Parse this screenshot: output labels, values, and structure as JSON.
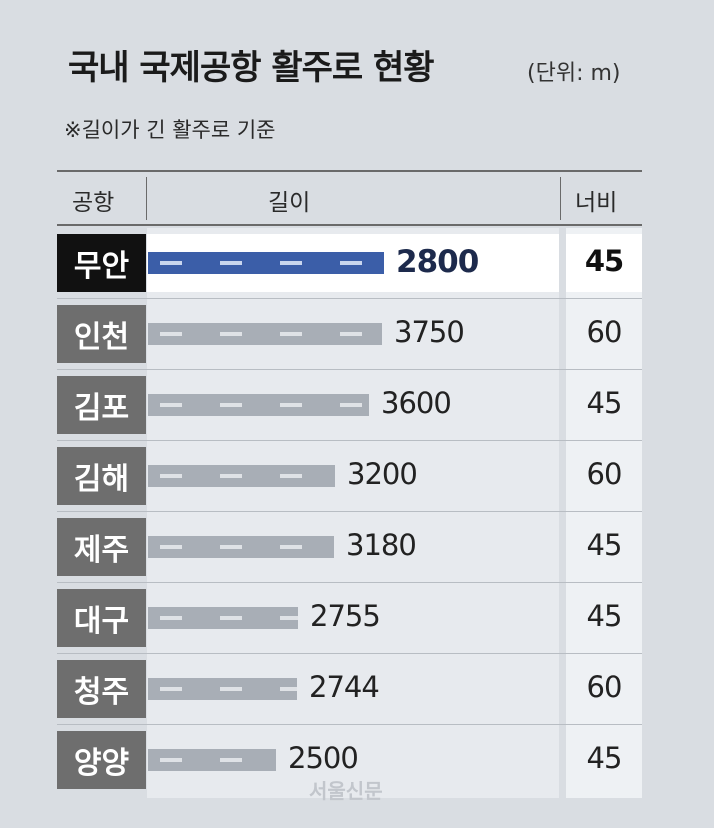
{
  "title": "국내 국제공항 활주로 현황",
  "unit": "(단위: m)",
  "subtitle": "※길이가 긴 활주로 기준",
  "headers": {
    "airport": "공항",
    "length": "길이",
    "width": "너비"
  },
  "watermark": "서울신문",
  "colors": {
    "highlight_bar": "#3b5ea8",
    "bar": "#a8aeb6",
    "highlight_label": "#111111",
    "label": "#6e6e6e"
  },
  "chart_data": {
    "type": "bar",
    "orientation": "horizontal",
    "title": "국내 국제공항 활주로 현황",
    "categories": [
      "무안",
      "인천",
      "김포",
      "김해",
      "제주",
      "대구",
      "청주",
      "양양"
    ],
    "values": [
      2800,
      3750,
      3600,
      3200,
      3180,
      2755,
      2744,
      2500
    ],
    "value_labels": [
      "2800",
      "3750",
      "3600",
      "3200",
      "3180",
      "2755",
      "2744",
      "2500"
    ],
    "widths": [
      "45",
      "60",
      "45",
      "60",
      "45",
      "45",
      "60",
      "45"
    ],
    "highlight": "무안",
    "unit": "m",
    "grid": false
  }
}
